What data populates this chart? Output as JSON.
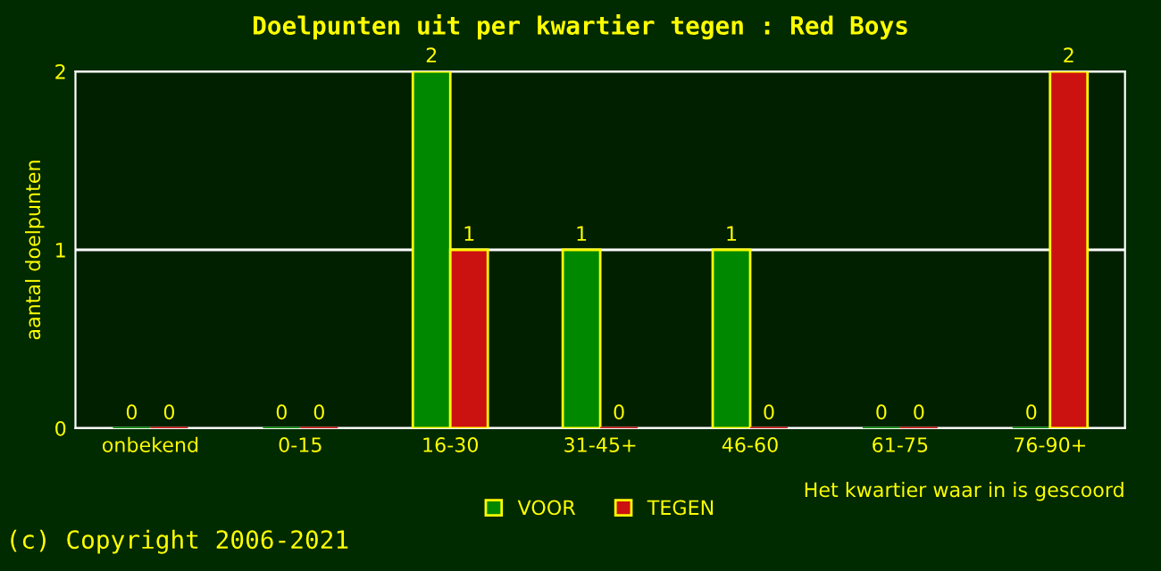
{
  "chart_data": {
    "type": "bar",
    "title": "Doelpunten uit per kwartier tegen : Red Boys",
    "xlabel": "Het kwartier waar in is gescoord",
    "ylabel": "aantal doelpunten",
    "categories": [
      "onbekend",
      "0-15",
      "16-30",
      "31-45+",
      "46-60",
      "61-75",
      "76-90+"
    ],
    "series": [
      {
        "name": "VOOR",
        "color": "#008800",
        "values": [
          0,
          0,
          2,
          1,
          1,
          0,
          0
        ]
      },
      {
        "name": "TEGEN",
        "color": "#cc1111",
        "values": [
          0,
          0,
          1,
          0,
          0,
          0,
          2
        ]
      }
    ],
    "ylim": [
      0,
      2
    ],
    "yticks": [
      0,
      1,
      2
    ],
    "grid": "y",
    "legend": "bottom",
    "data_labels": true,
    "annotations": [
      "(c) Copyright 2006-2021"
    ]
  }
}
